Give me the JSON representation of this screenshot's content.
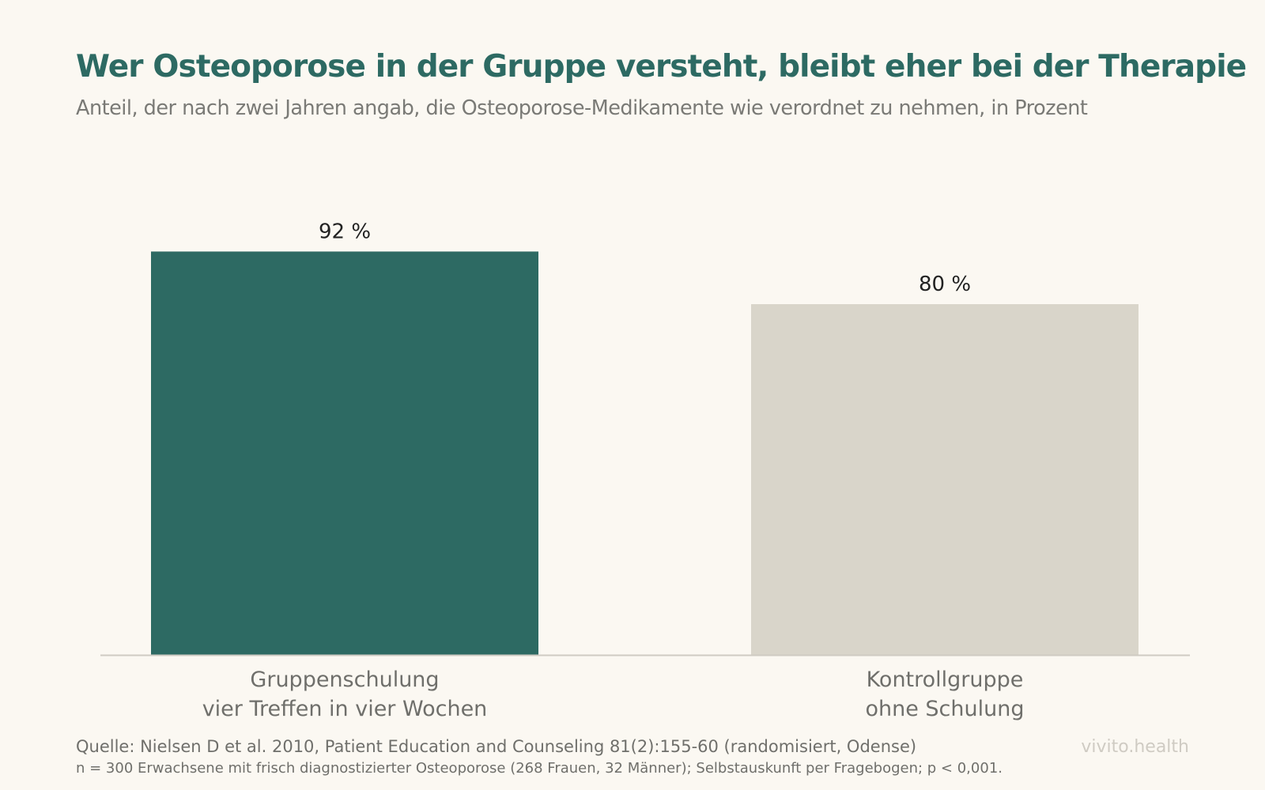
{
  "chart_data": {
    "type": "bar",
    "title": "Wer Osteoporose in der Gruppe versteht, bleibt eher bei der Therapie",
    "subtitle": "Anteil, der nach zwei Jahren angab, die Osteoporose-Medikamente wie verordnet zu nehmen, in Prozent",
    "categories": [
      [
        "Gruppenschulung",
        "vier Treffen in vier Wochen"
      ],
      [
        "Kontrollgruppe",
        "ohne Schulung"
      ]
    ],
    "values": [
      92,
      80
    ],
    "value_labels": [
      "92 %",
      "80 %"
    ],
    "bar_colors": [
      "#2d6a63",
      "#d9d5ca"
    ],
    "ylim": [
      0,
      100
    ],
    "grid": false
  },
  "footer": {
    "source": "Quelle: Nielsen D et al. 2010, Patient Education and Counseling 81(2):155-60 (randomisiert, Odense)",
    "note": "n = 300 Erwachsene mit frisch diagnostizierter Osteoporose (268 Frauen, 32 Männer); Selbstauskunft per Fragebogen; p < 0,001.",
    "brand": "vivito.health"
  }
}
